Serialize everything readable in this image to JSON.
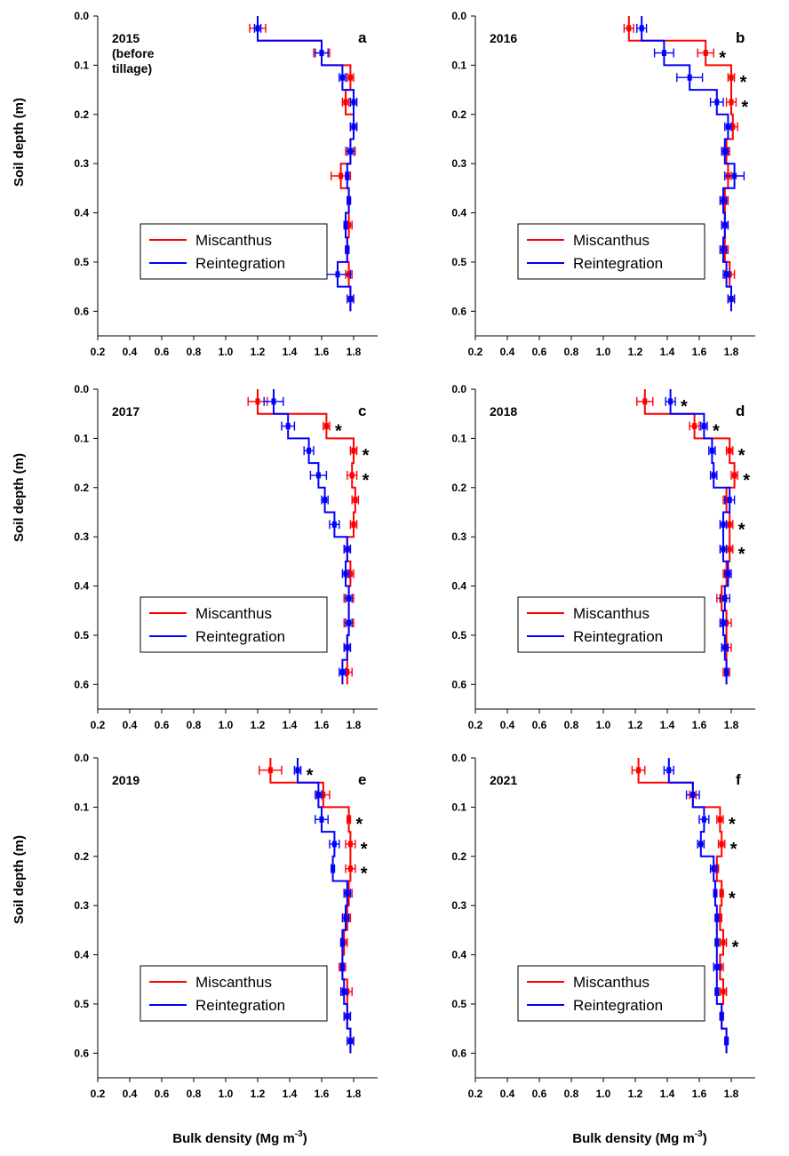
{
  "figure": {
    "xlabel": "Bulk density (Mg m",
    "xlabel_sup": "-3",
    "xlabel_close": ")",
    "ylabel": "Soil depth (m)"
  },
  "chart_data": [
    {
      "type": "line",
      "panel": "a",
      "year_label": [
        "2015",
        "(before",
        "tillage)"
      ],
      "xlim": [
        0.2,
        1.95
      ],
      "ylim": [
        0.0,
        0.65
      ],
      "y_inverted": true,
      "xticks": [
        "0.2",
        "0.4",
        "0.6",
        "0.8",
        "1.0",
        "1.2",
        "1.4",
        "1.6",
        "1.8"
      ],
      "yticks": [
        "0.0",
        "0.1",
        "0.2",
        "0.3",
        "0.4",
        "0.5",
        "0.6"
      ],
      "legend": [
        "Miscanthus",
        "Reintegration"
      ],
      "colors": {
        "Miscanthus": "#ff0000",
        "Reintegration": "#0000ff"
      },
      "series": [
        {
          "name": "Miscanthus",
          "depth_bounds": [
            0.0,
            0.05,
            0.1,
            0.15,
            0.2,
            0.25,
            0.3,
            0.35,
            0.4,
            0.45,
            0.5,
            0.55,
            0.6
          ],
          "bulk_density": [
            1.2,
            1.6,
            1.78,
            1.75,
            1.8,
            1.78,
            1.72,
            1.77,
            1.77,
            1.76,
            1.77,
            1.78
          ],
          "error": [
            0.05,
            0.05,
            0.02,
            0.02,
            0.02,
            0.03,
            0.06,
            0.01,
            0.02,
            0.01,
            0.02,
            0.02
          ]
        },
        {
          "name": "Reintegration",
          "depth_bounds": [
            0.0,
            0.05,
            0.1,
            0.15,
            0.2,
            0.25,
            0.3,
            0.35,
            0.4,
            0.45,
            0.5,
            0.55,
            0.6
          ],
          "bulk_density": [
            1.2,
            1.6,
            1.73,
            1.8,
            1.8,
            1.78,
            1.76,
            1.77,
            1.75,
            1.76,
            1.7,
            1.78
          ],
          "error": [
            0.02,
            0.04,
            0.02,
            0.02,
            0.02,
            0.02,
            0.01,
            0.01,
            0.01,
            0.01,
            0.08,
            0.02
          ]
        }
      ],
      "significance_depths": []
    },
    {
      "type": "line",
      "panel": "b",
      "year_label": [
        "2016"
      ],
      "xlim": [
        0.2,
        1.95
      ],
      "ylim": [
        0.0,
        0.65
      ],
      "y_inverted": true,
      "xticks": [
        "0.2",
        "0.4",
        "0.6",
        "0.8",
        "1.0",
        "1.2",
        "1.4",
        "1.6",
        "1.8"
      ],
      "yticks": [
        "0.0",
        "0.1",
        "0.2",
        "0.3",
        "0.4",
        "0.5",
        "0.6"
      ],
      "legend": [
        "Miscanthus",
        "Reintegration"
      ],
      "colors": {
        "Miscanthus": "#ff0000",
        "Reintegration": "#0000ff"
      },
      "series": [
        {
          "name": "Miscanthus",
          "depth_bounds": [
            0.0,
            0.05,
            0.1,
            0.15,
            0.2,
            0.25,
            0.3,
            0.35,
            0.4,
            0.45,
            0.5,
            0.55,
            0.6
          ],
          "bulk_density": [
            1.16,
            1.64,
            1.8,
            1.8,
            1.81,
            1.77,
            1.78,
            1.76,
            1.76,
            1.76,
            1.79,
            1.8
          ],
          "error": [
            0.03,
            0.05,
            0.02,
            0.03,
            0.03,
            0.02,
            0.02,
            0.02,
            0.02,
            0.02,
            0.03,
            0.02
          ]
        },
        {
          "name": "Reintegration",
          "depth_bounds": [
            0.0,
            0.05,
            0.1,
            0.15,
            0.2,
            0.25,
            0.3,
            0.35,
            0.4,
            0.45,
            0.5,
            0.55,
            0.6
          ],
          "bulk_density": [
            1.24,
            1.38,
            1.54,
            1.71,
            1.78,
            1.76,
            1.82,
            1.75,
            1.76,
            1.75,
            1.77,
            1.8
          ],
          "error": [
            0.03,
            0.06,
            0.08,
            0.04,
            0.02,
            0.02,
            0.06,
            0.02,
            0.02,
            0.02,
            0.02,
            0.02
          ]
        }
      ],
      "significance_depths": [
        0.075,
        0.125,
        0.175
      ]
    },
    {
      "type": "line",
      "panel": "c",
      "year_label": [
        "2017"
      ],
      "xlim": [
        0.2,
        1.95
      ],
      "ylim": [
        0.0,
        0.65
      ],
      "y_inverted": true,
      "xticks": [
        "0.2",
        "0.4",
        "0.6",
        "0.8",
        "1.0",
        "1.2",
        "1.4",
        "1.6",
        "1.8"
      ],
      "yticks": [
        "0.0",
        "0.1",
        "0.2",
        "0.3",
        "0.4",
        "0.5",
        "0.6"
      ],
      "legend": [
        "Miscanthus",
        "Reintegration"
      ],
      "colors": {
        "Miscanthus": "#ff0000",
        "Reintegration": "#0000ff"
      },
      "series": [
        {
          "name": "Miscanthus",
          "depth_bounds": [
            0.0,
            0.05,
            0.1,
            0.15,
            0.2,
            0.25,
            0.3,
            0.35,
            0.4,
            0.45,
            0.5,
            0.55,
            0.6
          ],
          "bulk_density": [
            1.2,
            1.63,
            1.8,
            1.79,
            1.81,
            1.8,
            1.76,
            1.78,
            1.77,
            1.77,
            1.76,
            1.76
          ],
          "error": [
            0.06,
            0.02,
            0.02,
            0.03,
            0.02,
            0.02,
            0.02,
            0.02,
            0.03,
            0.03,
            0.02,
            0.03
          ]
        },
        {
          "name": "Reintegration",
          "depth_bounds": [
            0.0,
            0.05,
            0.1,
            0.15,
            0.2,
            0.25,
            0.3,
            0.35,
            0.4,
            0.45,
            0.5,
            0.55,
            0.6
          ],
          "bulk_density": [
            1.3,
            1.39,
            1.52,
            1.58,
            1.62,
            1.68,
            1.76,
            1.75,
            1.77,
            1.77,
            1.76,
            1.73
          ],
          "error": [
            0.06,
            0.04,
            0.03,
            0.05,
            0.02,
            0.03,
            0.02,
            0.02,
            0.02,
            0.02,
            0.02,
            0.02
          ]
        }
      ],
      "significance_depths": [
        0.075,
        0.125,
        0.175
      ]
    },
    {
      "type": "line",
      "panel": "d",
      "year_label": [
        "2018"
      ],
      "xlim": [
        0.2,
        1.95
      ],
      "ylim": [
        0.0,
        0.65
      ],
      "y_inverted": true,
      "xticks": [
        "0.2",
        "0.4",
        "0.6",
        "0.8",
        "1.0",
        "1.2",
        "1.4",
        "1.6",
        "1.8"
      ],
      "yticks": [
        "0.0",
        "0.1",
        "0.2",
        "0.3",
        "0.4",
        "0.5",
        "0.6"
      ],
      "legend": [
        "Miscanthus",
        "Reintegration"
      ],
      "colors": {
        "Miscanthus": "#ff0000",
        "Reintegration": "#0000ff"
      },
      "series": [
        {
          "name": "Miscanthus",
          "depth_bounds": [
            0.0,
            0.05,
            0.1,
            0.15,
            0.2,
            0.25,
            0.3,
            0.35,
            0.4,
            0.45,
            0.5,
            0.55,
            0.6
          ],
          "bulk_density": [
            1.26,
            1.57,
            1.79,
            1.82,
            1.77,
            1.79,
            1.79,
            1.77,
            1.74,
            1.77,
            1.77,
            1.77
          ],
          "error": [
            0.05,
            0.03,
            0.02,
            0.02,
            0.02,
            0.02,
            0.02,
            0.02,
            0.03,
            0.03,
            0.03,
            0.02
          ]
        },
        {
          "name": "Reintegration",
          "depth_bounds": [
            0.0,
            0.05,
            0.1,
            0.15,
            0.2,
            0.25,
            0.3,
            0.35,
            0.4,
            0.45,
            0.5,
            0.55,
            0.6
          ],
          "bulk_density": [
            1.42,
            1.63,
            1.68,
            1.69,
            1.79,
            1.75,
            1.75,
            1.78,
            1.76,
            1.75,
            1.76,
            1.77
          ],
          "error": [
            0.03,
            0.02,
            0.02,
            0.02,
            0.03,
            0.02,
            0.02,
            0.02,
            0.03,
            0.02,
            0.02,
            0.01
          ]
        }
      ],
      "significance_depths": [
        0.025,
        0.075,
        0.125,
        0.175,
        0.275,
        0.325
      ]
    },
    {
      "type": "line",
      "panel": "e",
      "year_label": [
        "2019"
      ],
      "xlim": [
        0.2,
        1.95
      ],
      "ylim": [
        0.0,
        0.65
      ],
      "y_inverted": true,
      "xticks": [
        "0.2",
        "0.4",
        "0.6",
        "0.8",
        "1.0",
        "1.2",
        "1.4",
        "1.6",
        "1.8"
      ],
      "yticks": [
        "0.0",
        "0.1",
        "0.2",
        "0.3",
        "0.4",
        "0.5",
        "0.6"
      ],
      "legend": [
        "Miscanthus",
        "Reintegration"
      ],
      "colors": {
        "Miscanthus": "#ff0000",
        "Reintegration": "#0000ff"
      },
      "series": [
        {
          "name": "Miscanthus",
          "depth_bounds": [
            0.0,
            0.05,
            0.1,
            0.15,
            0.2,
            0.25,
            0.3,
            0.35,
            0.4,
            0.45,
            0.5,
            0.55,
            0.6
          ],
          "bulk_density": [
            1.28,
            1.61,
            1.77,
            1.78,
            1.78,
            1.77,
            1.76,
            1.74,
            1.73,
            1.76,
            1.76,
            1.78
          ],
          "error": [
            0.07,
            0.04,
            0.01,
            0.03,
            0.03,
            0.02,
            0.02,
            0.02,
            0.02,
            0.03,
            0.02,
            0.02
          ]
        },
        {
          "name": "Reintegration",
          "depth_bounds": [
            0.0,
            0.05,
            0.1,
            0.15,
            0.2,
            0.25,
            0.3,
            0.35,
            0.4,
            0.45,
            0.5,
            0.55,
            0.6
          ],
          "bulk_density": [
            1.45,
            1.58,
            1.6,
            1.68,
            1.67,
            1.76,
            1.75,
            1.73,
            1.73,
            1.74,
            1.76,
            1.78
          ],
          "error": [
            0.02,
            0.02,
            0.04,
            0.03,
            0.01,
            0.02,
            0.02,
            0.01,
            0.01,
            0.02,
            0.02,
            0.02
          ]
        }
      ],
      "significance_depths": [
        0.025,
        0.125,
        0.175,
        0.225
      ]
    },
    {
      "type": "line",
      "panel": "f",
      "year_label": [
        "2021"
      ],
      "xlim": [
        0.2,
        1.95
      ],
      "ylim": [
        0.0,
        0.65
      ],
      "y_inverted": true,
      "xticks": [
        "0.2",
        "0.4",
        "0.6",
        "0.8",
        "1.0",
        "1.2",
        "1.4",
        "1.6",
        "1.8"
      ],
      "yticks": [
        "0.0",
        "0.1",
        "0.2",
        "0.3",
        "0.4",
        "0.5",
        "0.6"
      ],
      "legend": [
        "Miscanthus",
        "Reintegration"
      ],
      "colors": {
        "Miscanthus": "#ff0000",
        "Reintegration": "#0000ff"
      },
      "series": [
        {
          "name": "Miscanthus",
          "depth_bounds": [
            0.0,
            0.05,
            0.1,
            0.15,
            0.2,
            0.25,
            0.3,
            0.35,
            0.4,
            0.45,
            0.5,
            0.55,
            0.6
          ],
          "bulk_density": [
            1.22,
            1.56,
            1.73,
            1.74,
            1.71,
            1.74,
            1.73,
            1.75,
            1.73,
            1.75,
            1.74,
            1.77
          ],
          "error": [
            0.04,
            0.02,
            0.02,
            0.02,
            0.01,
            0.01,
            0.01,
            0.02,
            0.02,
            0.02,
            0.01,
            0.01
          ]
        },
        {
          "name": "Reintegration",
          "depth_bounds": [
            0.0,
            0.05,
            0.1,
            0.15,
            0.2,
            0.25,
            0.3,
            0.35,
            0.4,
            0.45,
            0.5,
            0.55,
            0.6
          ],
          "bulk_density": [
            1.41,
            1.56,
            1.63,
            1.61,
            1.69,
            1.7,
            1.71,
            1.71,
            1.71,
            1.71,
            1.74,
            1.77
          ],
          "error": [
            0.03,
            0.04,
            0.03,
            0.02,
            0.02,
            0.01,
            0.01,
            0.01,
            0.02,
            0.01,
            0.01,
            0.01
          ]
        }
      ],
      "significance_depths": [
        0.125,
        0.175,
        0.275,
        0.375
      ]
    }
  ]
}
